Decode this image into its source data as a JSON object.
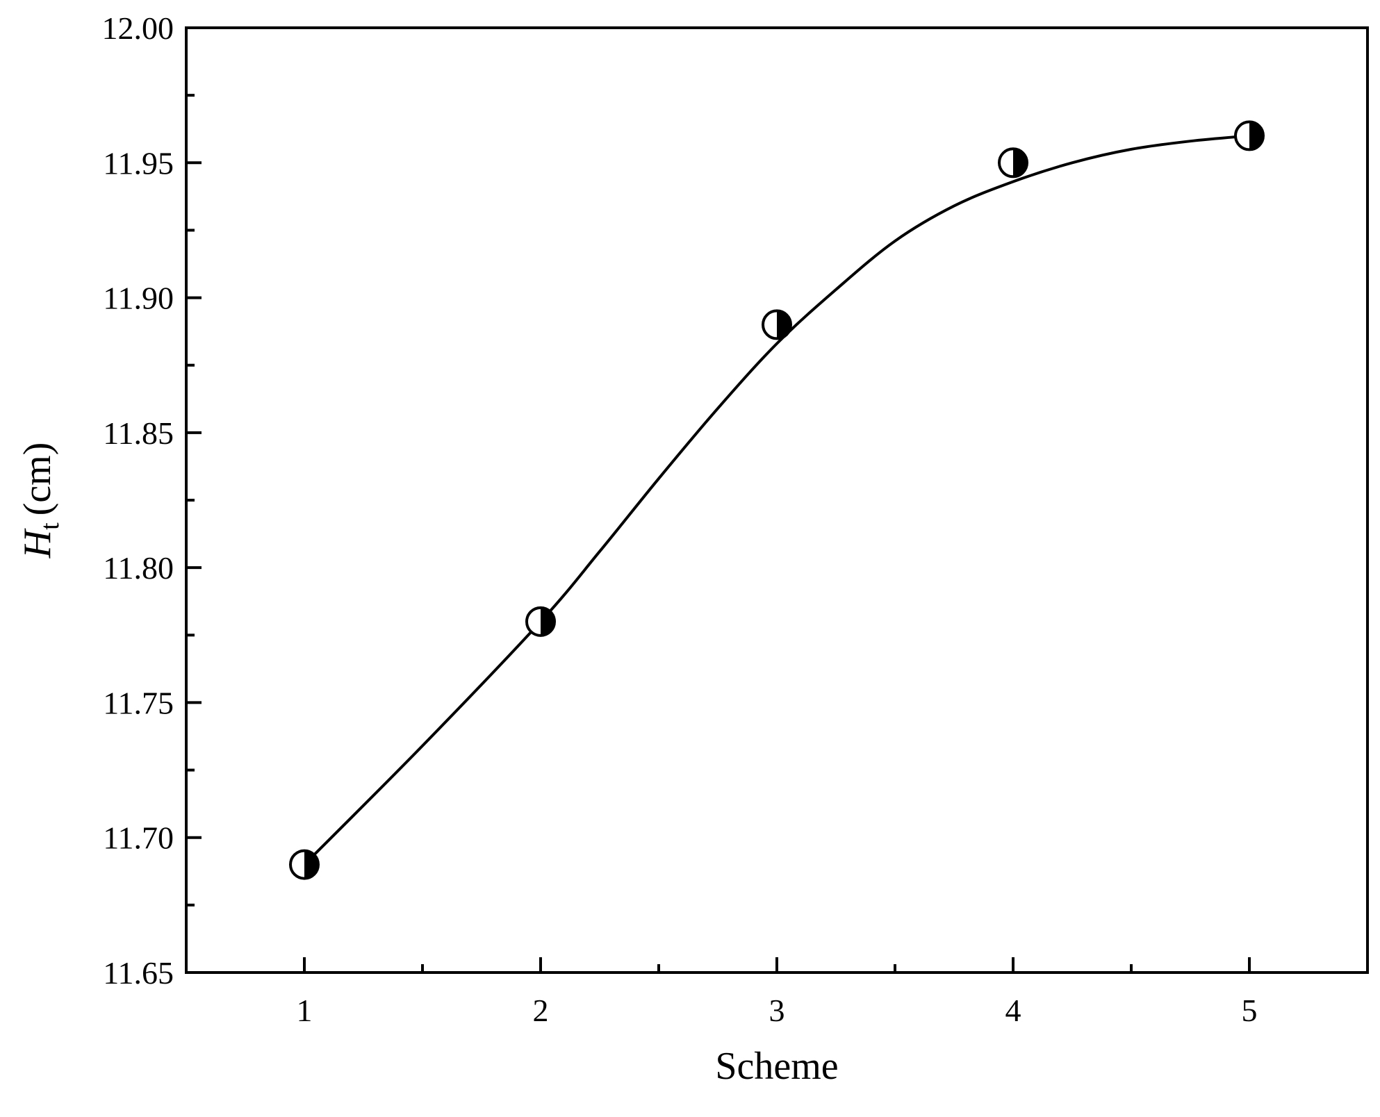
{
  "chart_data": {
    "type": "scatter",
    "xlabel": "Scheme",
    "ylabel": "H",
    "ylabel_subscript": "t",
    "ylabel_unit": "(cm)",
    "xlim": [
      0.5,
      5.5
    ],
    "ylim": [
      11.65,
      12.0
    ],
    "x_ticks": [
      1,
      2,
      3,
      4,
      5
    ],
    "x_tick_labels": [
      "1",
      "2",
      "3",
      "4",
      "5"
    ],
    "x_minor_ticks": [
      1.5,
      2.5,
      3.5,
      4.5
    ],
    "y_ticks": [
      11.65,
      11.7,
      11.75,
      11.8,
      11.85,
      11.9,
      11.95,
      12.0
    ],
    "y_tick_labels": [
      "11.65",
      "11.70",
      "11.75",
      "11.80",
      "11.85",
      "11.90",
      "11.95",
      "12.00"
    ],
    "y_minor_ticks": [
      11.675,
      11.725,
      11.775,
      11.825,
      11.875,
      11.925,
      11.975
    ],
    "grid": false,
    "marker": "half-filled-circle",
    "points": [
      {
        "x": 1,
        "y": 11.69
      },
      {
        "x": 2,
        "y": 11.78
      },
      {
        "x": 3,
        "y": 11.89
      },
      {
        "x": 4,
        "y": 11.95
      },
      {
        "x": 5,
        "y": 11.96
      }
    ],
    "fit_curve": [
      [
        1.0,
        11.69
      ],
      [
        1.5,
        11.734
      ],
      [
        2.0,
        11.78
      ],
      [
        2.25,
        11.806
      ],
      [
        2.5,
        11.833
      ],
      [
        2.75,
        11.859
      ],
      [
        3.0,
        11.883
      ],
      [
        3.25,
        11.903
      ],
      [
        3.5,
        11.921
      ],
      [
        3.75,
        11.934
      ],
      [
        4.0,
        11.943
      ],
      [
        4.25,
        11.95
      ],
      [
        4.5,
        11.955
      ],
      [
        4.75,
        11.958
      ],
      [
        5.0,
        11.96
      ]
    ],
    "colors": {
      "line": "#000000",
      "marker_fill": "#000000",
      "marker_empty": "#ffffff"
    }
  }
}
